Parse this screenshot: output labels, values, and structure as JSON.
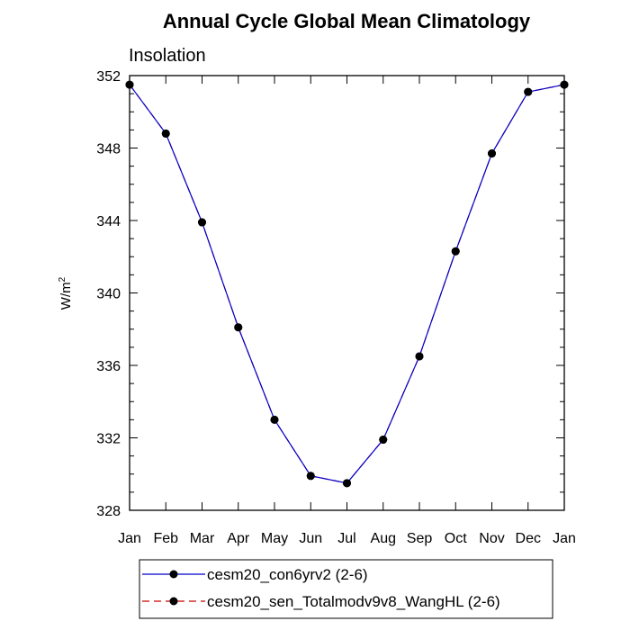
{
  "chart_data": {
    "type": "line",
    "title": "Annual Cycle Global Mean Climatology",
    "subtitle": "Insolation",
    "ylabel_base": "W/m",
    "ylabel_sup": "2",
    "xlabel": "",
    "categories": [
      "Jan",
      "Feb",
      "Mar",
      "Apr",
      "May",
      "Jun",
      "Jul",
      "Aug",
      "Sep",
      "Oct",
      "Nov",
      "Dec",
      "Jan"
    ],
    "ylim": [
      328,
      352
    ],
    "yticks": [
      "328",
      "332",
      "336",
      "340",
      "344",
      "348",
      "352"
    ],
    "series": [
      {
        "name": "cesm20_con6yrv2 (2-6)",
        "color": "#0000cc",
        "marker_color": "#000000",
        "dash": "solid",
        "values": [
          351.5,
          348.8,
          343.9,
          338.1,
          333.0,
          329.9,
          329.5,
          331.9,
          336.5,
          342.3,
          347.7,
          351.1,
          351.5
        ]
      },
      {
        "name": "cesm20_sen_Totalmodv9v8_WangHL (2-6)",
        "color": "#cc0000",
        "marker_color": "#000000",
        "dash": "dashed",
        "values": [
          351.5,
          348.8,
          343.9,
          338.1,
          333.0,
          329.9,
          329.5,
          331.9,
          336.5,
          342.3,
          347.7,
          351.1,
          351.5
        ]
      }
    ],
    "legend_position": "bottom-center"
  }
}
